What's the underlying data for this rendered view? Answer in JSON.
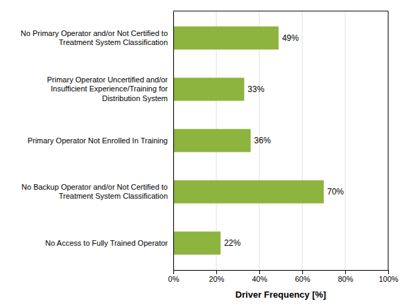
{
  "chart_data": {
    "type": "bar",
    "orientation": "horizontal",
    "categories": [
      "No Access to Fully Trained Operator",
      "No Backup Operator and/or Not Certified to\nTreatment System Classification",
      "Primary Operator Not Enrolled In Training",
      "Primary Operator Uncertified and/or\nInsufficient Experience/Training for\nDistribution System",
      "No Primary Operator and/or Not Certified to\nTreatment System Classification"
    ],
    "values": [
      22,
      70,
      36,
      33,
      49
    ],
    "value_labels": [
      "22%",
      "70%",
      "36%",
      "33%",
      "49%"
    ],
    "data_labels": true,
    "color": "#8DB43E",
    "xlabel": "Driver Frequency [%]",
    "xlim": [
      0,
      100
    ],
    "xticks": [
      {
        "value": 0,
        "label": "0%"
      },
      {
        "value": 20,
        "label": "20%"
      },
      {
        "value": 40,
        "label": "40%"
      },
      {
        "value": 60,
        "label": "60%"
      },
      {
        "value": 80,
        "label": "80%"
      },
      {
        "value": 100,
        "label": "100%"
      }
    ],
    "grid": true
  }
}
